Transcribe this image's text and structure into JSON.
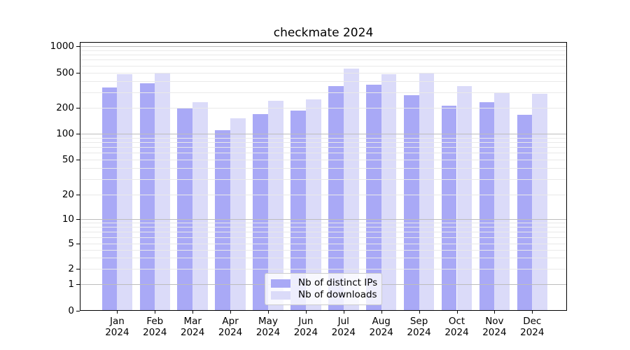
{
  "title": "checkmate 2024",
  "legend": {
    "items": [
      {
        "label": "Nb of distinct IPs",
        "color": "#a9a9f6"
      },
      {
        "label": "Nb of downloads",
        "color": "#dbdbf9"
      }
    ]
  },
  "chart_data": {
    "type": "bar",
    "title": "checkmate 2024",
    "categories": [
      "Jan",
      "Feb",
      "Mar",
      "Apr",
      "May",
      "Jun",
      "Jul",
      "Aug",
      "Sep",
      "Oct",
      "Nov",
      "Dec"
    ],
    "category_year": "2024",
    "series": [
      {
        "name": "Nb of distinct IPs",
        "color": "#a9a9f6",
        "values": [
          340,
          380,
          195,
          110,
          170,
          185,
          350,
          365,
          275,
          210,
          230,
          165
        ]
      },
      {
        "name": "Nb of downloads",
        "color": "#dbdbf9",
        "values": [
          480,
          495,
          230,
          150,
          240,
          250,
          550,
          480,
          485,
          350,
          300,
          285
        ]
      }
    ],
    "y_axis": {
      "scale": "symlog",
      "ticks": [
        0,
        1,
        2,
        5,
        10,
        20,
        50,
        100,
        200,
        500,
        1000
      ],
      "minor_gridlines": [
        3,
        4,
        6,
        7,
        8,
        9,
        30,
        40,
        60,
        70,
        80,
        90,
        300,
        400,
        600,
        700,
        800,
        900
      ],
      "ylim": [
        0,
        1100
      ]
    },
    "xlabel": "",
    "ylabel": "",
    "grid": "both",
    "legend_position": "lower center"
  }
}
